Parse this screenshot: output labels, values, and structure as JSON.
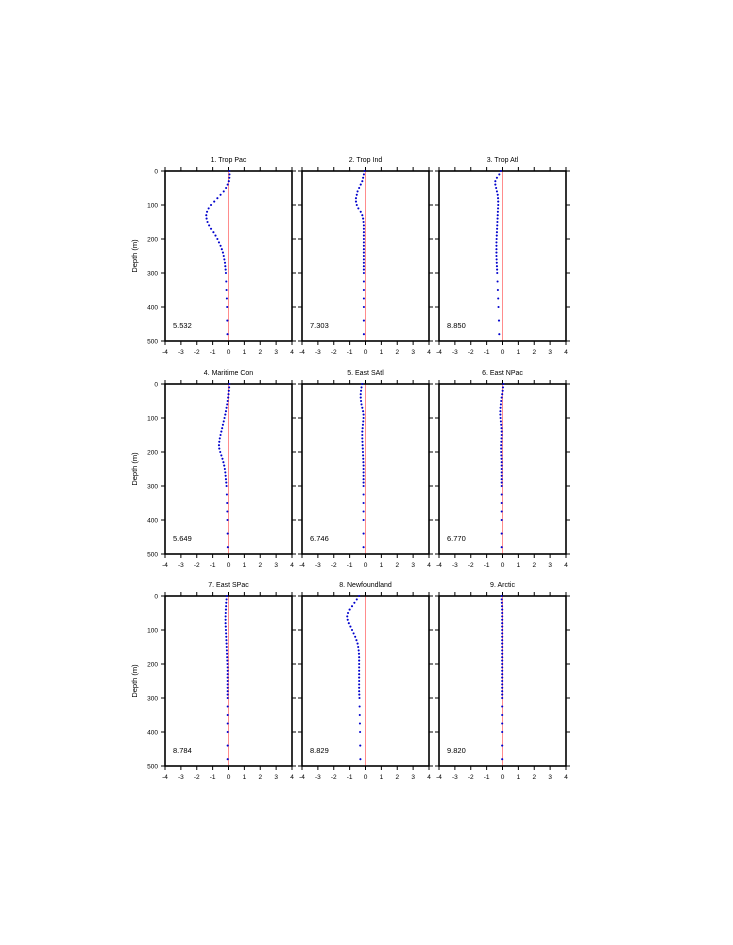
{
  "chart_data": {
    "type": "scatter",
    "layout": "3x3 panel grid",
    "ylabel": "Depth (m)",
    "xlim": [
      -4,
      4
    ],
    "ylim": [
      500,
      0
    ],
    "y_inverted": true,
    "xticks": [
      "-4",
      "-3",
      "-2",
      "-1",
      "0",
      "1",
      "2",
      "3",
      "4"
    ],
    "yticks": [
      "0",
      "100",
      "200",
      "300",
      "400",
      "500"
    ],
    "reference_line_x": 0,
    "colors": {
      "points": "#0000cc",
      "reference_line": "#ff8080",
      "frame": "#000000"
    },
    "depths": [
      0,
      10,
      20,
      30,
      40,
      50,
      60,
      70,
      80,
      90,
      100,
      110,
      120,
      130,
      140,
      150,
      160,
      170,
      180,
      190,
      200,
      210,
      220,
      230,
      240,
      250,
      260,
      270,
      280,
      290,
      300,
      325,
      350,
      375,
      400,
      440,
      480
    ],
    "panels": [
      {
        "title": "1. Trop Pac",
        "value_label": "5.532",
        "values": [
          0.05,
          0.06,
          0.05,
          0.02,
          -0.05,
          -0.15,
          -0.3,
          -0.5,
          -0.7,
          -0.9,
          -1.1,
          -1.25,
          -1.35,
          -1.4,
          -1.38,
          -1.32,
          -1.22,
          -1.1,
          -0.95,
          -0.82,
          -0.7,
          -0.6,
          -0.5,
          -0.42,
          -0.35,
          -0.3,
          -0.26,
          -0.22,
          -0.2,
          -0.18,
          -0.16,
          -0.14,
          -0.12,
          -0.1,
          -0.08,
          -0.07,
          -0.06
        ]
      },
      {
        "title": "2. Trop Ind",
        "value_label": "7.303",
        "values": [
          -0.05,
          -0.1,
          -0.15,
          -0.2,
          -0.3,
          -0.4,
          -0.5,
          -0.55,
          -0.6,
          -0.6,
          -0.55,
          -0.45,
          -0.3,
          -0.2,
          -0.15,
          -0.12,
          -0.1,
          -0.1,
          -0.1,
          -0.1,
          -0.1,
          -0.1,
          -0.1,
          -0.1,
          -0.1,
          -0.1,
          -0.1,
          -0.1,
          -0.1,
          -0.1,
          -0.1,
          -0.1,
          -0.1,
          -0.1,
          -0.1,
          -0.1,
          -0.1
        ]
      },
      {
        "title": "3. Trop Atl",
        "value_label": "8.850",
        "values": [
          -0.1,
          -0.2,
          -0.35,
          -0.45,
          -0.45,
          -0.4,
          -0.35,
          -0.3,
          -0.28,
          -0.27,
          -0.27,
          -0.28,
          -0.29,
          -0.3,
          -0.31,
          -0.32,
          -0.33,
          -0.34,
          -0.35,
          -0.36,
          -0.37,
          -0.38,
          -0.38,
          -0.38,
          -0.38,
          -0.38,
          -0.37,
          -0.36,
          -0.35,
          -0.34,
          -0.33,
          -0.31,
          -0.29,
          -0.27,
          -0.25,
          -0.22,
          -0.2
        ]
      },
      {
        "title": "4. Maritime Con",
        "value_label": "5.649",
        "values": [
          0.05,
          0.04,
          0.02,
          0.0,
          -0.02,
          -0.05,
          -0.08,
          -0.12,
          -0.16,
          -0.2,
          -0.25,
          -0.3,
          -0.35,
          -0.4,
          -0.45,
          -0.5,
          -0.55,
          -0.58,
          -0.6,
          -0.58,
          -0.52,
          -0.45,
          -0.38,
          -0.32,
          -0.27,
          -0.23,
          -0.2,
          -0.18,
          -0.16,
          -0.14,
          -0.12,
          -0.1,
          -0.08,
          -0.07,
          -0.06,
          -0.05,
          -0.04
        ]
      },
      {
        "title": "5. East SAtl",
        "value_label": "6.746",
        "values": [
          -0.2,
          -0.25,
          -0.28,
          -0.3,
          -0.3,
          -0.28,
          -0.25,
          -0.2,
          -0.15,
          -0.12,
          -0.12,
          -0.14,
          -0.16,
          -0.18,
          -0.2,
          -0.2,
          -0.2,
          -0.19,
          -0.18,
          -0.17,
          -0.16,
          -0.15,
          -0.14,
          -0.13,
          -0.12,
          -0.12,
          -0.12,
          -0.12,
          -0.12,
          -0.12,
          -0.12,
          -0.12,
          -0.12,
          -0.12,
          -0.12,
          -0.12,
          -0.12
        ]
      },
      {
        "title": "6. East NPac",
        "value_label": "6.770",
        "values": [
          0.05,
          0.03,
          0.01,
          -0.02,
          -0.05,
          -0.08,
          -0.1,
          -0.12,
          -0.13,
          -0.13,
          -0.12,
          -0.1,
          -0.08,
          -0.06,
          -0.05,
          -0.05,
          -0.06,
          -0.07,
          -0.08,
          -0.08,
          -0.08,
          -0.07,
          -0.06,
          -0.05,
          -0.05,
          -0.05,
          -0.05,
          -0.05,
          -0.05,
          -0.05,
          -0.05,
          -0.05,
          -0.05,
          -0.05,
          -0.05,
          -0.05,
          -0.05
        ]
      },
      {
        "title": "7. East SPac",
        "value_label": "8.784",
        "values": [
          -0.1,
          -0.12,
          -0.14,
          -0.15,
          -0.16,
          -0.17,
          -0.18,
          -0.18,
          -0.18,
          -0.17,
          -0.16,
          -0.15,
          -0.14,
          -0.13,
          -0.12,
          -0.11,
          -0.1,
          -0.09,
          -0.08,
          -0.07,
          -0.06,
          -0.05,
          -0.05,
          -0.05,
          -0.05,
          -0.05,
          -0.05,
          -0.05,
          -0.05,
          -0.05,
          -0.05,
          -0.05,
          -0.05,
          -0.05,
          -0.05,
          -0.05,
          -0.05
        ]
      },
      {
        "title": "8. Newfoundland",
        "value_label": "8.829",
        "values": [
          -0.4,
          -0.55,
          -0.7,
          -0.85,
          -1.0,
          -1.1,
          -1.15,
          -1.12,
          -1.05,
          -0.95,
          -0.85,
          -0.75,
          -0.65,
          -0.57,
          -0.5,
          -0.46,
          -0.43,
          -0.41,
          -0.4,
          -0.4,
          -0.4,
          -0.4,
          -0.4,
          -0.4,
          -0.4,
          -0.4,
          -0.4,
          -0.4,
          -0.4,
          -0.39,
          -0.38,
          -0.37,
          -0.36,
          -0.35,
          -0.34,
          -0.33,
          -0.32
        ]
      },
      {
        "title": "9. Arctic",
        "value_label": "9.820",
        "values": [
          -0.05,
          -0.05,
          -0.04,
          -0.03,
          -0.02,
          -0.02,
          -0.02,
          -0.02,
          -0.02,
          -0.02,
          -0.02,
          -0.02,
          -0.02,
          -0.02,
          -0.02,
          -0.02,
          -0.02,
          -0.02,
          -0.02,
          -0.02,
          -0.02,
          -0.02,
          -0.02,
          -0.02,
          -0.02,
          -0.02,
          -0.02,
          -0.02,
          -0.02,
          -0.02,
          -0.02,
          -0.02,
          -0.02,
          -0.02,
          -0.02,
          -0.02,
          -0.02
        ]
      }
    ]
  }
}
